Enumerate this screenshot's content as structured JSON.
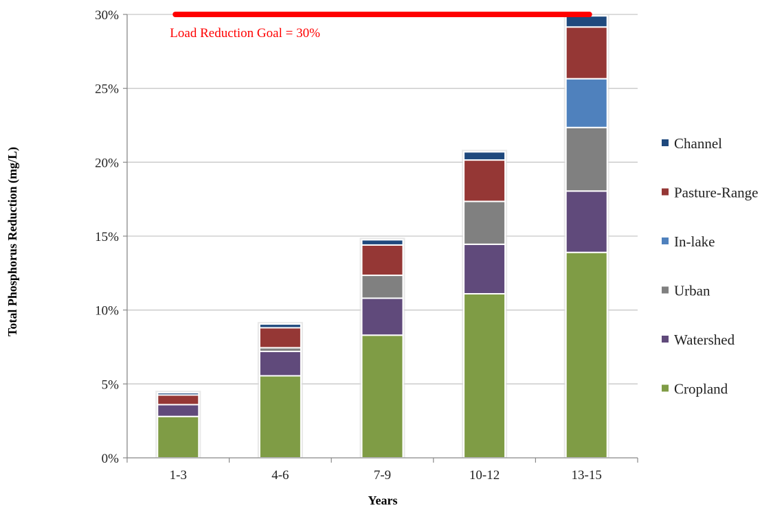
{
  "chart_data": {
    "type": "bar",
    "stacked": true,
    "title": "",
    "xlabel": "Years",
    "ylabel": "Total Phosphorus Reduction (mg/L)",
    "categories": [
      "1-3",
      "4-6",
      "7-9",
      "10-12",
      "13-15"
    ],
    "ylim": [
      0,
      0.3
    ],
    "yticks": [
      "0%",
      "5%",
      "10%",
      "15%",
      "20%",
      "25%",
      "30%"
    ],
    "grid": true,
    "legend_position": "right",
    "series": [
      {
        "name": "Cropland",
        "color": "#7f9c45",
        "values": [
          0.028,
          0.0555,
          0.083,
          0.111,
          0.139
        ]
      },
      {
        "name": "Watershed",
        "color": "#604a7b",
        "values": [
          0.008,
          0.0165,
          0.025,
          0.0335,
          0.0415
        ]
      },
      {
        "name": "Urban",
        "color": "#808080",
        "values": [
          0.0,
          0.0025,
          0.0155,
          0.029,
          0.043
        ]
      },
      {
        "name": "In-lake",
        "color": "#4f81bd",
        "values": [
          0.0,
          0.0,
          0.0,
          0.0,
          0.033
        ]
      },
      {
        "name": "Pasture-Range",
        "color": "#953735",
        "values": [
          0.0065,
          0.0135,
          0.0205,
          0.028,
          0.035
        ]
      },
      {
        "name": "Channel",
        "color": "#1f497d",
        "values": [
          0.0015,
          0.0025,
          0.0035,
          0.0055,
          0.0075
        ]
      }
    ],
    "annotations": [
      {
        "type": "hline",
        "y": 0.3,
        "x_from": "1-3",
        "x_to": "13-15",
        "color": "#ff0000",
        "text": "Load Reduction Goal = 30%"
      }
    ]
  }
}
